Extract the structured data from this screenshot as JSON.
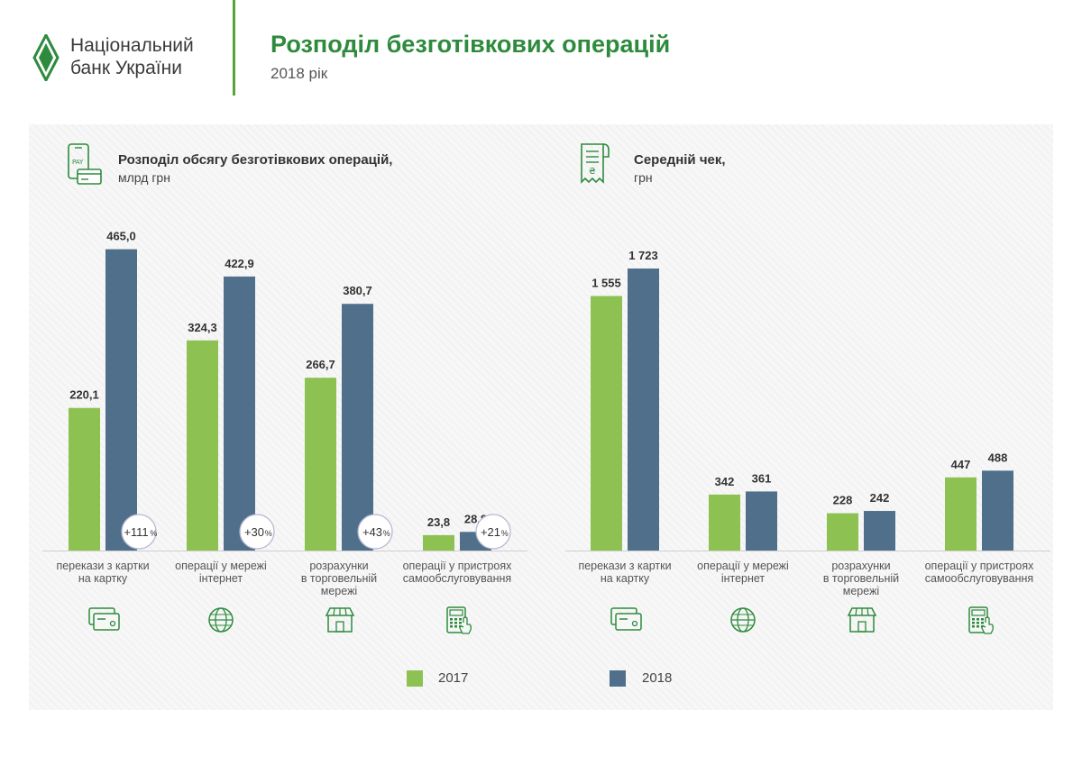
{
  "header": {
    "logo_line1": "Національний",
    "logo_line2": "банк України",
    "title": "Розподіл безготівкових операцій",
    "subtitle": "2018 рік"
  },
  "colors": {
    "series_2017": "#8dc152",
    "series_2018": "#506f8a",
    "title": "#2e8b3d"
  },
  "left_panel": {
    "title": "Розподіл обсягу безготівкових операцій,",
    "unit": "млрд грн"
  },
  "right_panel": {
    "title": "Середній чек,",
    "unit": "грн"
  },
  "legend": [
    "2017",
    "2018"
  ],
  "category_icons": [
    "credit-card-icon",
    "globe-icon",
    "shop-icon",
    "terminal-icon"
  ],
  "chart_data": [
    {
      "type": "bar",
      "title": "Розподіл обсягу безготівкових операцій,",
      "ylabel": "млрд грн",
      "categories": [
        "перекази з картки на картку",
        "операції у мережі інтернет",
        "розрахунки в торговельній мережі",
        "операції у пристроях самообслуговування"
      ],
      "category_lines": [
        [
          "перекази з картки",
          "на картку"
        ],
        [
          "операції у мережі",
          "інтернет"
        ],
        [
          "розрахунки",
          "в торговельній",
          "мережі"
        ],
        [
          "операції у пристроях",
          "самообслуговування"
        ]
      ],
      "series": [
        {
          "name": "2017",
          "values": [
            220.1,
            324.3,
            266.7,
            23.8
          ],
          "labels": [
            "220,1",
            "324,3",
            "266,7",
            "23,8"
          ]
        },
        {
          "name": "2018",
          "values": [
            465.0,
            422.9,
            380.7,
            28.8
          ],
          "labels": [
            "465,0",
            "422,9",
            "380,7",
            "28,8"
          ]
        }
      ],
      "growth": [
        {
          "value": "+111",
          "unit": "%"
        },
        {
          "value": "+30",
          "unit": "%"
        },
        {
          "value": "+43",
          "unit": "%"
        },
        {
          "value": "+21",
          "unit": "%"
        }
      ],
      "ylim": [
        0,
        470
      ],
      "legend": [
        "2017",
        "2018"
      ]
    },
    {
      "type": "bar",
      "title": "Середній чек,",
      "ylabel": "грн",
      "categories": [
        "перекази з картки на картку",
        "операції у мережі інтернет",
        "розрахунки в торговельній мережі",
        "операції у пристроях самообслуговування"
      ],
      "category_lines": [
        [
          "перекази з картки",
          "на картку"
        ],
        [
          "операції у мережі",
          "інтернет"
        ],
        [
          "розрахунки",
          "в торговельній",
          "мережі"
        ],
        [
          "операції у пристроях",
          "самообслуговування"
        ]
      ],
      "series": [
        {
          "name": "2017",
          "values": [
            1555,
            342,
            228,
            447
          ],
          "labels": [
            "1 555",
            "342",
            "228",
            "447"
          ]
        },
        {
          "name": "2018",
          "values": [
            1723,
            361,
            242,
            488
          ],
          "labels": [
            "1 723",
            "361",
            "242",
            "488"
          ]
        }
      ],
      "ylim": [
        0,
        1723
      ],
      "legend": [
        "2017",
        "2018"
      ]
    }
  ]
}
